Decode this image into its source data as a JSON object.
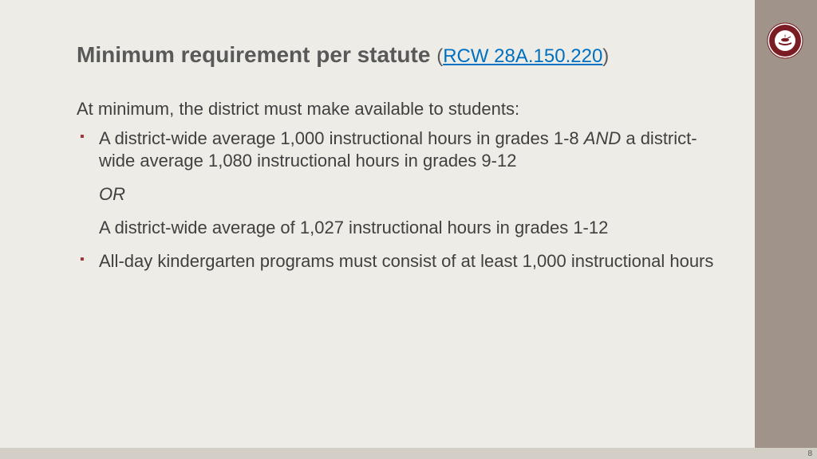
{
  "title": {
    "main": "Minimum requirement per statute",
    "paren_open": "(",
    "link_text": "RCW 28A.150.220",
    "paren_close": ")"
  },
  "intro": "At minimum, the district must make available to students:",
  "bullets": [
    {
      "runs": [
        {
          "text": "A district-wide average 1,000 instructional hours in grades 1-8 ",
          "italic": false
        },
        {
          "text": "AND",
          "italic": true
        },
        {
          "text": " a district-wide average 1,080 instructional hours in grades 9-12",
          "italic": false
        }
      ],
      "subs": [
        {
          "text": "OR",
          "italic": true
        },
        {
          "text": "A district-wide average of 1,027 instructional hours in grades 1-12",
          "italic": false
        }
      ]
    },
    {
      "runs": [
        {
          "text": "All-day kindergarten programs must consist of at least 1,000 instructional hours",
          "italic": false
        }
      ],
      "subs": []
    }
  ],
  "page_number": "8",
  "colors": {
    "background": "#eeece6",
    "sidebar": "#a09389",
    "footer_bar": "#d3cec6",
    "bullet": "#a6323a",
    "title_text": "#595959",
    "body_text": "#404040",
    "link": "#0070c0",
    "seal_dark": "#7a1c23",
    "seal_light": "#ffffff"
  }
}
